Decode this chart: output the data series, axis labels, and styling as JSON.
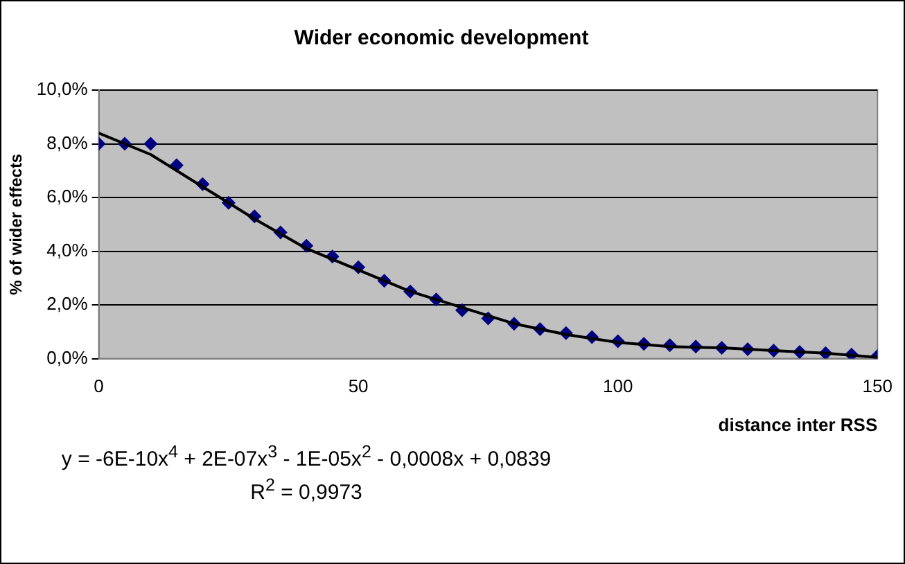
{
  "chart_data": {
    "type": "scatter",
    "title": "Wider economic development",
    "xlabel": "distance inter RSS",
    "ylabel": "% of wider effects",
    "series": [
      {
        "marker": "diamond",
        "color": "#000080",
        "x": [
          0,
          5,
          10,
          15,
          20,
          25,
          30,
          35,
          40,
          45,
          50,
          55,
          60,
          65,
          70,
          75,
          80,
          85,
          90,
          95,
          100,
          105,
          110,
          115,
          120,
          125,
          130,
          135,
          140,
          145,
          150
        ],
        "values": [
          8.0,
          8.0,
          8.0,
          7.2,
          6.5,
          5.8,
          5.3,
          4.7,
          4.2,
          3.8,
          3.4,
          2.9,
          2.5,
          2.2,
          1.8,
          1.5,
          1.3,
          1.1,
          0.95,
          0.8,
          0.65,
          0.55,
          0.5,
          0.45,
          0.4,
          0.35,
          0.3,
          0.25,
          0.2,
          0.15,
          0.1
        ]
      },
      {
        "type": "line",
        "marker": "none",
        "line_style": "solid",
        "color": "#000000",
        "x": [
          0,
          10,
          20,
          30,
          40,
          50,
          60,
          70,
          80,
          90,
          100,
          110,
          120,
          130,
          140,
          150
        ],
        "values": [
          8.4,
          7.6,
          6.4,
          5.2,
          4.1,
          3.3,
          2.5,
          1.9,
          1.3,
          0.9,
          0.6,
          0.45,
          0.4,
          0.3,
          0.2,
          0.05
        ]
      }
    ],
    "xlim": [
      0,
      150
    ],
    "xticks": [
      0,
      50,
      100,
      150
    ],
    "ylim": [
      0,
      10
    ],
    "yticks": [
      {
        "value": 0,
        "label": "0,0%"
      },
      {
        "value": 2,
        "label": "2,0%"
      },
      {
        "value": 4,
        "label": "4,0%"
      },
      {
        "value": 6,
        "label": "6,0%"
      },
      {
        "value": 8,
        "label": "8,0%"
      },
      {
        "value": 10,
        "label": "10,0%"
      }
    ],
    "grid": "y",
    "legend": false,
    "annotations": [
      "y = -6E-10x$^{4}$ + 2E-07x$^{3}$ - 1E-05x$^{2}$ - 0,0008x + 0,0839",
      "R$^{2}$ = 0,9973"
    ]
  }
}
